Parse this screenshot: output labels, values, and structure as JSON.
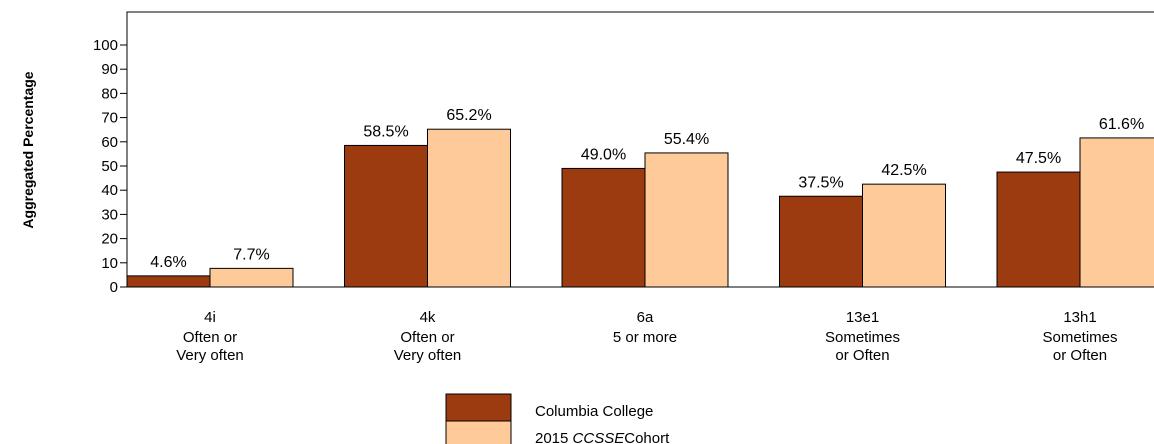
{
  "chart_data": {
    "type": "bar",
    "ylabel": "Aggregated Percentage",
    "ylim": [
      0,
      110
    ],
    "yticks": [
      0,
      10,
      20,
      30,
      40,
      50,
      60,
      70,
      80,
      90,
      100
    ],
    "categories": [
      {
        "code": "4i",
        "lines": [
          "Often or",
          "Very often"
        ]
      },
      {
        "code": "4k",
        "lines": [
          "Often or",
          "Very often"
        ]
      },
      {
        "code": "6a",
        "lines": [
          "5 or more"
        ]
      },
      {
        "code": "13e1",
        "lines": [
          "Sometimes",
          "or Often"
        ]
      },
      {
        "code": "13h1",
        "lines": [
          "Sometimes",
          "or Often"
        ]
      }
    ],
    "series": [
      {
        "name": "Columbia College",
        "color": "#9c3a10",
        "values": [
          4.6,
          58.5,
          49.0,
          37.5,
          47.5
        ],
        "labels": [
          "4.6%",
          "58.5%",
          "49.0%",
          "37.5%",
          "47.5%"
        ]
      },
      {
        "name_prefix": "2015 ",
        "name_italic": "CCSSE",
        "name_suffix": "Cohort",
        "color": "#ffca99",
        "values": [
          7.7,
          65.2,
          55.4,
          42.5,
          61.6
        ],
        "labels": [
          "7.7%",
          "65.2%",
          "55.4%",
          "42.5%",
          "61.6%"
        ]
      }
    ],
    "legend_position": "bottom-center",
    "grid": false
  }
}
